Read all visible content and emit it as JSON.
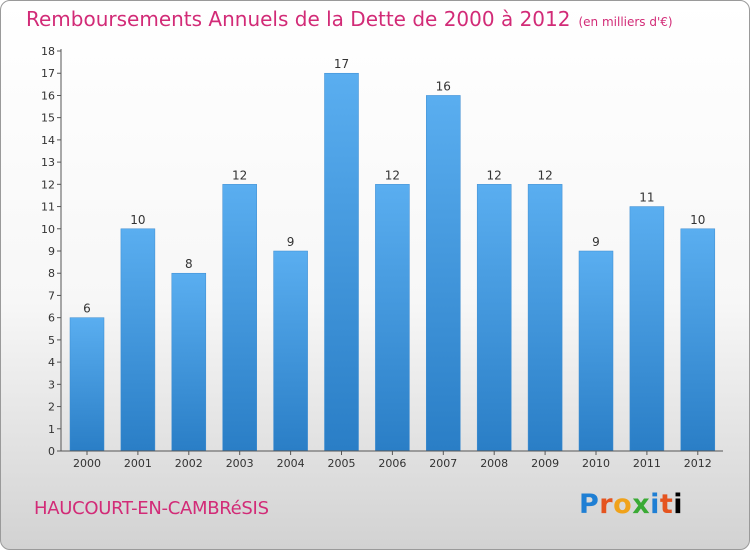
{
  "header": {
    "title": "Remboursements Annuels de la Dette de 2000 à 2012",
    "unit": "(en milliers d'€)"
  },
  "footer": {
    "commune": "HAUCOURT-EN-CAMBRéSIS",
    "logo_letters": [
      "P",
      "r",
      "o",
      "x",
      "i",
      "t",
      "i"
    ]
  },
  "colors": {
    "title": "#d22b77",
    "bar_top": "#5aaef0",
    "bar_bottom": "#2a7ec6"
  },
  "chart_data": {
    "type": "bar",
    "title": "Remboursements Annuels de la Dette de 2000 à 2012",
    "subtitle": "(en milliers d'€)",
    "categories": [
      "2000",
      "2001",
      "2002",
      "2003",
      "2004",
      "2005",
      "2006",
      "2007",
      "2008",
      "2009",
      "2010",
      "2011",
      "2012"
    ],
    "values": [
      6,
      10,
      8,
      12,
      9,
      17,
      12,
      16,
      12,
      12,
      9,
      11,
      10
    ],
    "data_labels": [
      "6",
      "10",
      "8",
      "12",
      "9",
      "17",
      "12",
      "16",
      "12",
      "12",
      "9",
      "11",
      "10"
    ],
    "yticks": [
      "0",
      "1",
      "2",
      "3",
      "4",
      "5",
      "6",
      "7",
      "8",
      "9",
      "10",
      "11",
      "12",
      "13",
      "14",
      "15",
      "16",
      "17",
      "18"
    ],
    "ylim": [
      0,
      18
    ],
    "grid": false,
    "legend": "none"
  }
}
